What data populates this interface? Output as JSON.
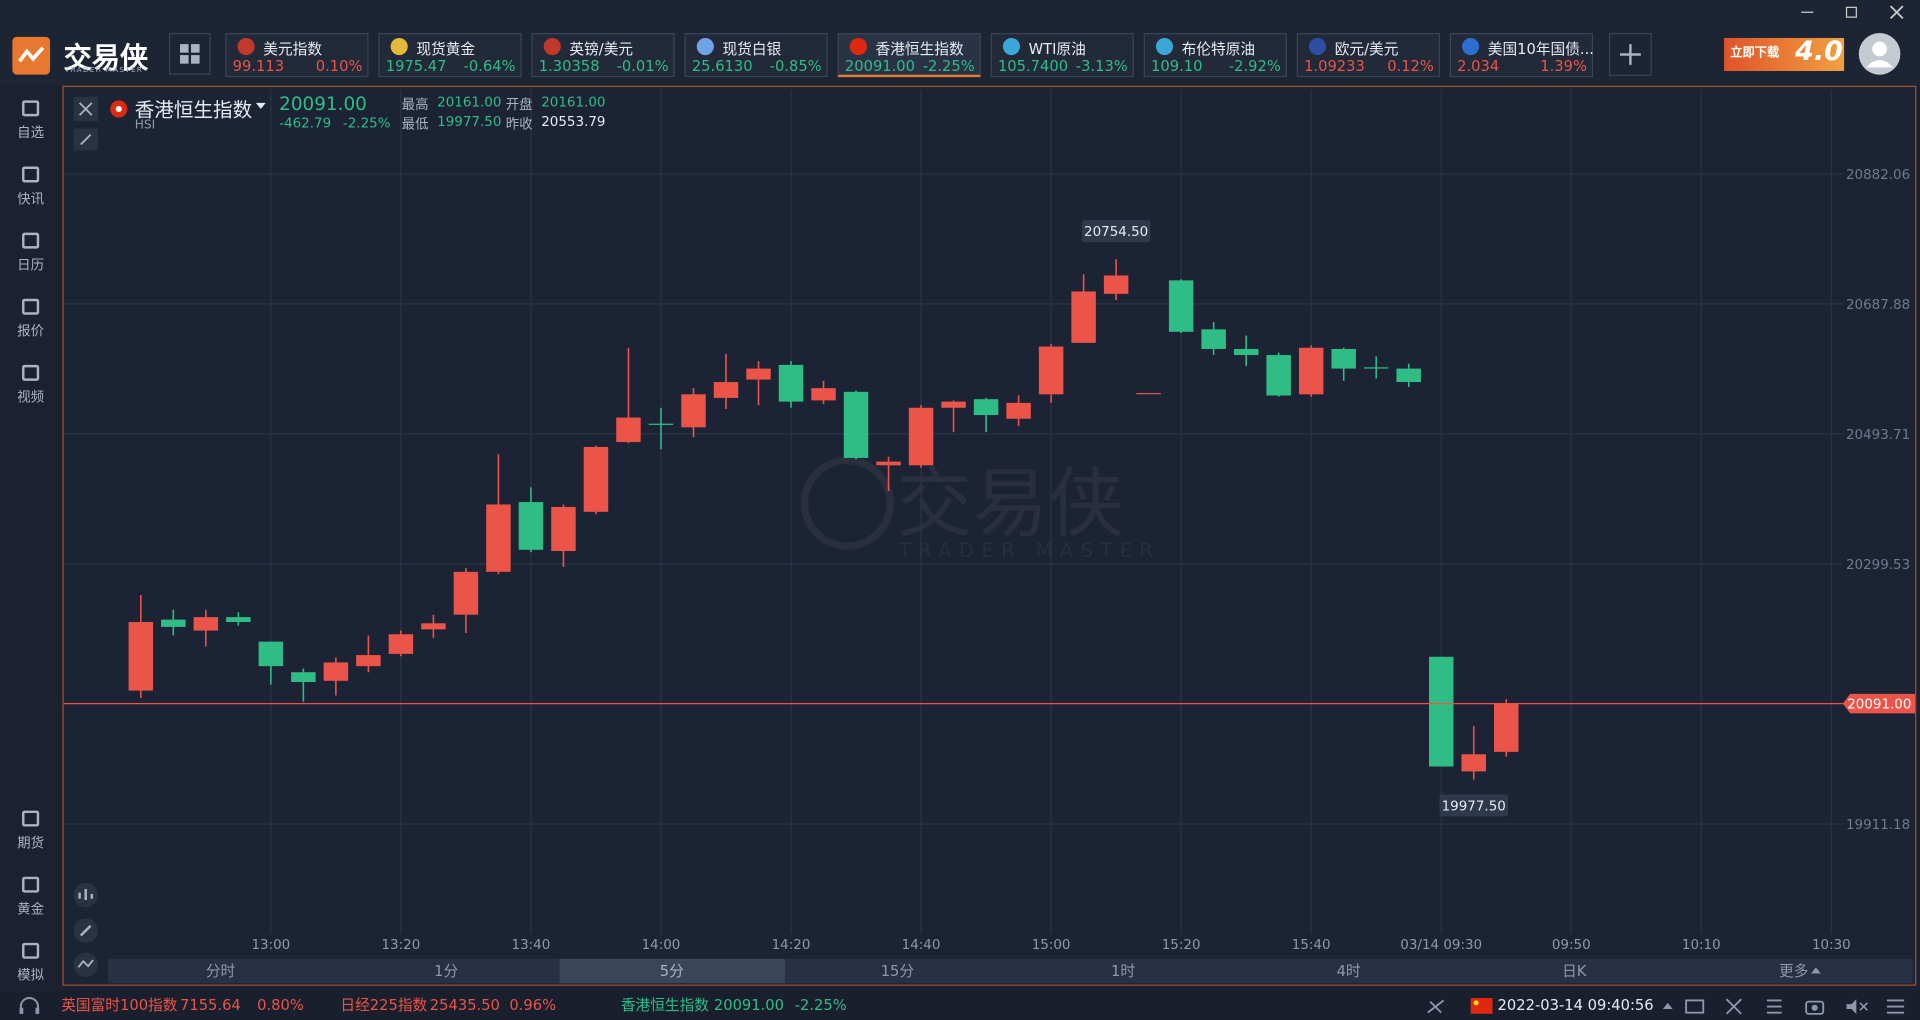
{
  "app": {
    "logo": "交易侠",
    "logo_sub": "TRADER MASTER",
    "ad_title": "立即下载",
    "ad_version": "4.0"
  },
  "tickers": [
    {
      "name": "美元指数",
      "price": "99.113",
      "change": "0.10%",
      "direction": "up"
    },
    {
      "name": "现货黄金",
      "price": "1975.47",
      "change": "-0.64%",
      "direction": "down"
    },
    {
      "name": "英镑/美元",
      "price": "1.30358",
      "change": "-0.01%",
      "direction": "down"
    },
    {
      "name": "现货白银",
      "price": "25.6130",
      "change": "-0.85%",
      "direction": "down"
    },
    {
      "name": "香港恒生指数",
      "price": "20091.00",
      "change": "-2.25%",
      "direction": "down"
    },
    {
      "name": "WTI原油",
      "price": "105.7400",
      "change": "-3.13%",
      "direction": "down"
    },
    {
      "name": "布伦特原油",
      "price": "109.10",
      "change": "-2.92%",
      "direction": "down"
    },
    {
      "name": "欧元/美元",
      "price": "1.09233",
      "change": "0.12%",
      "direction": "up"
    },
    {
      "name": "美国10年国债...",
      "price": "2.034",
      "change": "1.39%",
      "direction": "up"
    }
  ],
  "active_ticker": 4,
  "sidebar_top": [
    "自选",
    "快讯",
    "日历",
    "报价",
    "视频"
  ],
  "sidebar_bottom": [
    "期货",
    "黄金",
    "模拟"
  ],
  "quote": {
    "name": "香港恒生指数",
    "code": "HSI",
    "price": "20091.00",
    "change": "-462.79",
    "change_pct": "-2.25%",
    "stats": [
      {
        "label": "最高",
        "value": "20161.00",
        "direction": "down"
      },
      {
        "label": "开盘",
        "value": "20161.00",
        "direction": "down"
      },
      {
        "label": "最低",
        "value": "19977.50",
        "direction": "down"
      },
      {
        "label": "昨收",
        "value": "20553.79",
        "direction": "flat"
      }
    ]
  },
  "watermark": {
    "text": "交易侠",
    "sub": "TRADER MASTER"
  },
  "chart_data": {
    "type": "candlestick",
    "categories": [
      null,
      null,
      null,
      null,
      "13:00",
      null,
      null,
      null,
      "13:20",
      null,
      null,
      null,
      "13:40",
      null,
      null,
      null,
      "14:00",
      null,
      null,
      null,
      "14:20",
      null,
      null,
      null,
      "14:40",
      null,
      null,
      null,
      "15:00",
      null,
      null,
      null,
      "15:20",
      null,
      null,
      null,
      "15:40",
      null,
      null,
      null,
      "03/14 09:30",
      null,
      null,
      null,
      "09:50",
      null,
      null,
      null,
      "10:10",
      null,
      null,
      null,
      "10:30"
    ],
    "open": [
      20110.5,
      20216.5,
      20200.1,
      20220.2,
      20183.6,
      20137.9,
      20125.1,
      20147.0,
      20165.3,
      20201.9,
      20223.8,
      20287.8,
      20392.0,
      20318.9,
      20377.4,
      20481.6,
      20509.1,
      20503.6,
      20547.5,
      20574.9,
      20596.8,
      20543.8,
      20556.6,
      20446.9,
      20446.9,
      20532.8,
      20545.6,
      20516.4,
      20552.9,
      20629.7,
      20702.9,
      20554.8,
      20723.0,
      20649.9,
      20620.6,
      20611.5,
      20552.9,
      20620.6,
      20593.2,
      20591.3,
      20161.0,
      19989.8,
      20019.0,
      null,
      null,
      null,
      null,
      null,
      null,
      null,
      null,
      null,
      null
    ],
    "high": [
      20253.1,
      20231.2,
      20231.2,
      20227.5,
      20183.6,
      20143.4,
      20159.8,
      20192.8,
      20200.1,
      20223.8,
      20293.3,
      20463.4,
      20414.0,
      20388.4,
      20476.2,
      20622.4,
      20532.8,
      20562.1,
      20613.3,
      20602.3,
      20602.3,
      20573.1,
      20558.4,
      20459.7,
      20536.5,
      20543.8,
      20547.5,
      20551.1,
      20627.9,
      20732.1,
      20754.5,
      20554.8,
      20724.8,
      20660.8,
      20640.7,
      20615.1,
      20626.1,
      20622.4,
      20609.6,
      20598.7,
      20161.0,
      20057.4,
      20097.7,
      null,
      null,
      null,
      null,
      null,
      null,
      null,
      null,
      null,
      null
    ],
    "low": [
      20099.5,
      20192.8,
      20176.3,
      20207.4,
      20119.6,
      20094.0,
      20103.2,
      20137.9,
      20161.7,
      20189.1,
      20196.4,
      20284.2,
      20317.1,
      20295.1,
      20373.8,
      20479.8,
      20470.7,
      20489.0,
      20531.0,
      20536.5,
      20532.8,
      20538.3,
      20456.0,
      20408.5,
      20443.2,
      20496.3,
      20496.3,
      20505.4,
      20540.1,
      20629.7,
      20693.7,
      20554.8,
      20644.4,
      20611.5,
      20595.0,
      20549.3,
      20549.3,
      20573.1,
      20576.7,
      20563.9,
      19997.1,
      19977.5,
      20011.7,
      null,
      null,
      null,
      null,
      null,
      null,
      null,
      null,
      null,
      null
    ],
    "close": [
      20212.9,
      20205.6,
      20220.2,
      20212.9,
      20147.0,
      20123.3,
      20152.5,
      20163.5,
      20194.6,
      20211.0,
      20287.8,
      20388.4,
      20320.7,
      20384.7,
      20474.3,
      20518.2,
      20507.2,
      20552.9,
      20571.2,
      20591.3,
      20542.0,
      20562.1,
      20457.9,
      20452.4,
      20532.8,
      20542.0,
      20521.9,
      20540.1,
      20624.2,
      20706.5,
      20730.3,
      20554.8,
      20646.2,
      20620.6,
      20611.5,
      20551.1,
      20622.4,
      20591.3,
      20591.3,
      20571.2,
      19997.1,
      20015.4,
      20091.0,
      null,
      null,
      null,
      null,
      null,
      null,
      null,
      null,
      null,
      null
    ],
    "up_color": "#eb5449",
    "down_color": "#2fbd85",
    "ylim": [
      19746.6,
      21008.2
    ],
    "yticks": [
      20882.06,
      20687.88,
      20493.71,
      20299.53,
      19911.18
    ],
    "grid": true,
    "annotations": [
      {
        "text": "20754.50",
        "at": "high"
      },
      {
        "text": "19977.50",
        "at": "low"
      }
    ]
  },
  "periods": {
    "items": [
      "分时",
      "1分",
      "5分",
      "15分",
      "1时",
      "4时",
      "日K",
      "更多"
    ],
    "selected": 2
  },
  "status_bar": {
    "items": [
      {
        "name": "英国富时100指数",
        "price": "7155.64",
        "change": "0.80%",
        "direction": "up"
      },
      {
        "name": "日经225指数",
        "price": "25435.50",
        "change": "0.96%",
        "direction": "up"
      },
      {
        "name": "香港恒生指数",
        "price": "20091.00",
        "change": "-2.25%",
        "direction": "down"
      }
    ],
    "datetime": "2022-03-14 09:40:56"
  }
}
